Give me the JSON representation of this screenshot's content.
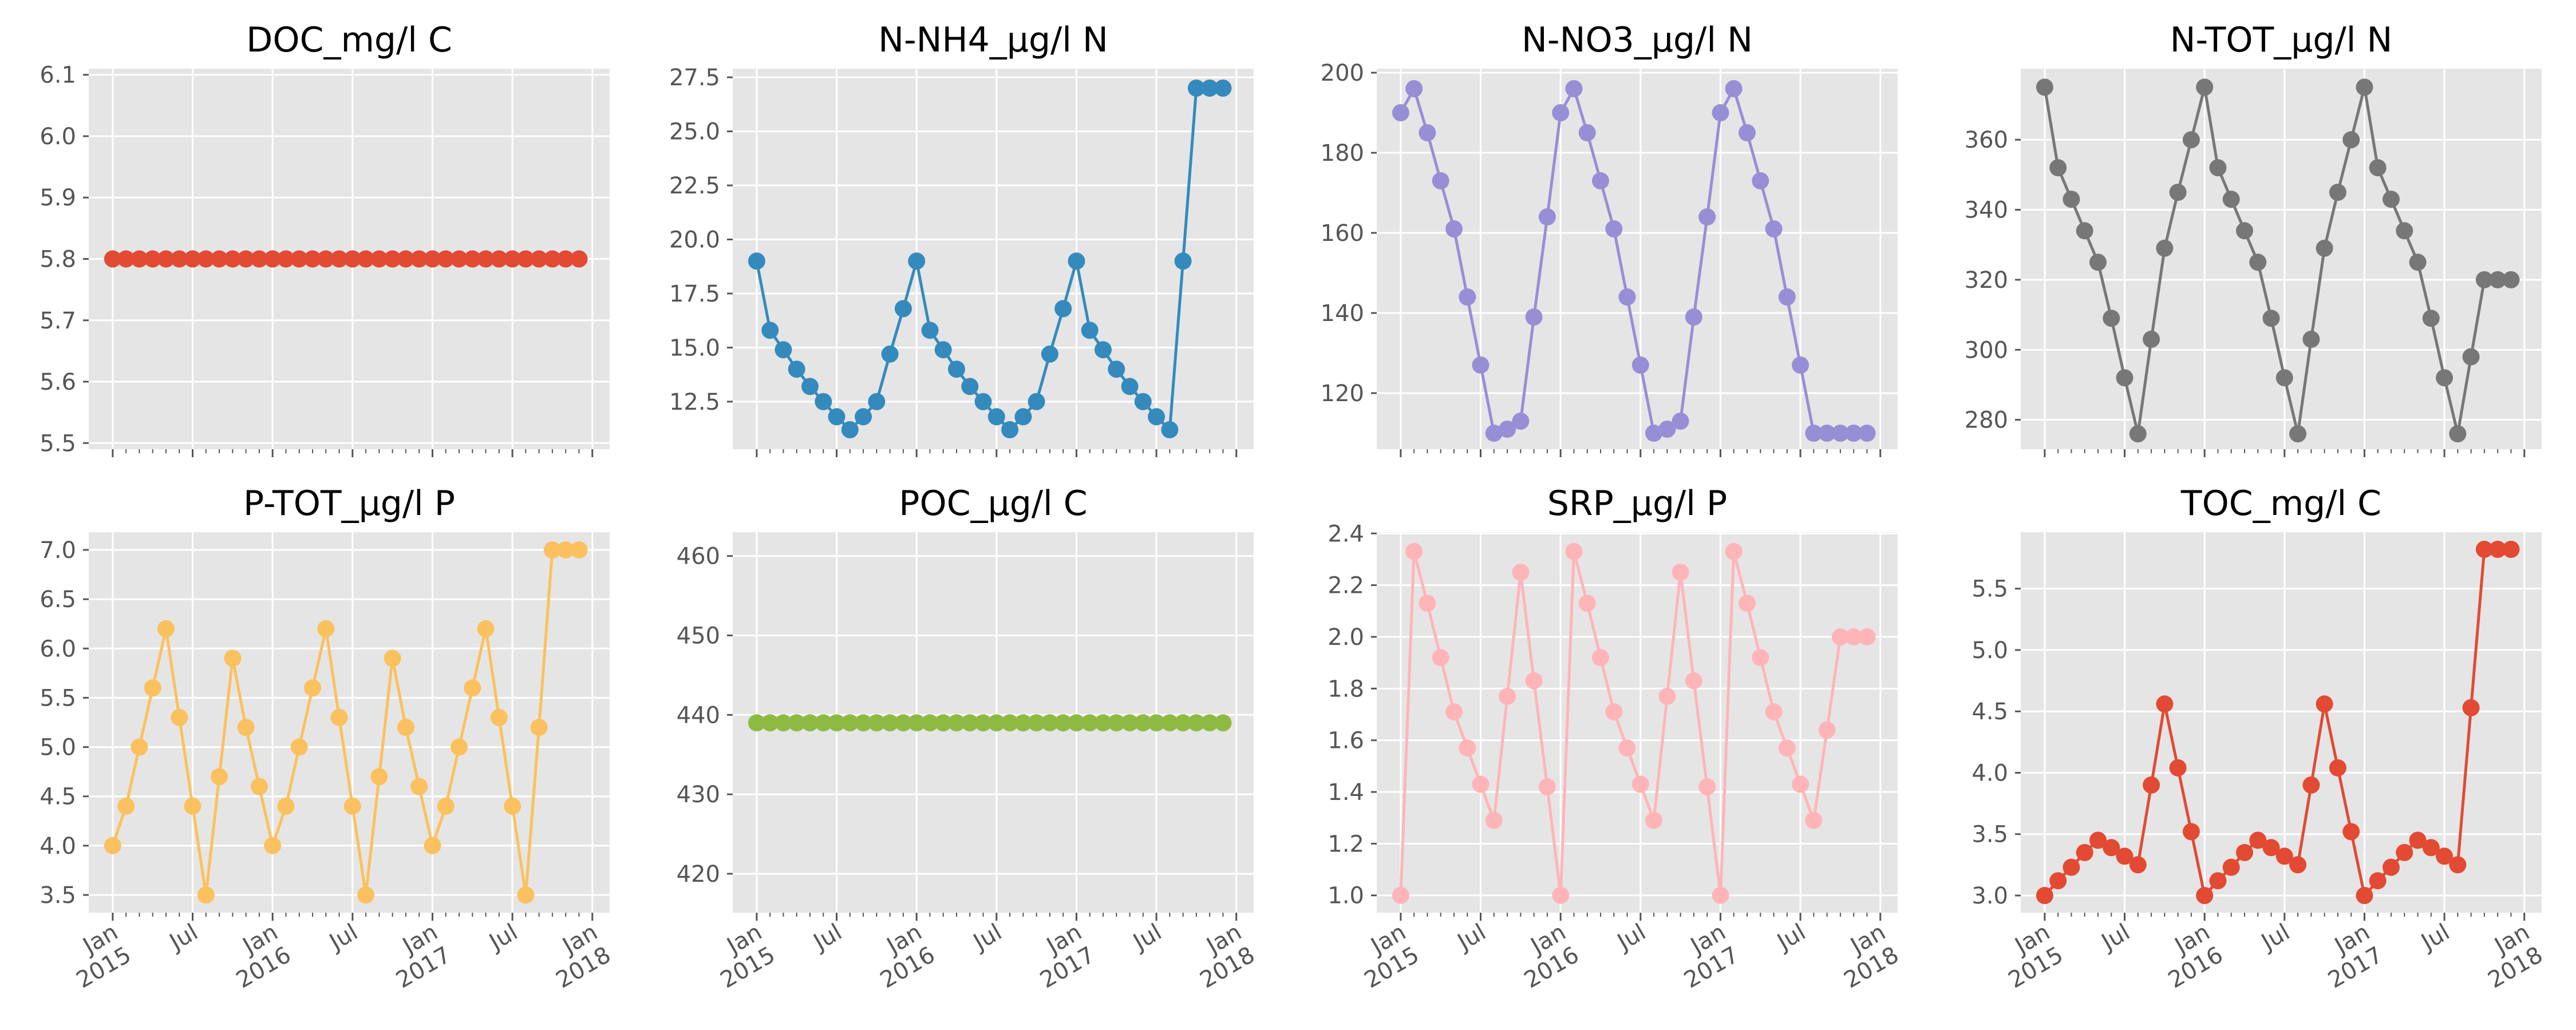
{
  "figure": {
    "background": "#ffffff",
    "axes_facecolor": "#e5e5e5",
    "grid_color": "#ffffff",
    "tick_color": "#555555",
    "x_ticks": [
      {
        "date": "2015-01",
        "month": "Jan",
        "year": "2015"
      },
      {
        "date": "2015-07",
        "month": "Jul",
        "year": ""
      },
      {
        "date": "2016-01",
        "month": "Jan",
        "year": "2016"
      },
      {
        "date": "2016-07",
        "month": "Jul",
        "year": ""
      },
      {
        "date": "2017-01",
        "month": "Jan",
        "year": "2017"
      },
      {
        "date": "2017-07",
        "month": "Jul",
        "year": ""
      },
      {
        "date": "2018-01",
        "month": "Jan",
        "year": "2018"
      }
    ]
  },
  "chart_data": [
    {
      "type": "line",
      "title": "DOC_mg/l C",
      "color": "#e24a33",
      "x_start": "2015-01",
      "x_step_months": 1,
      "ylim": [
        5.49,
        6.11
      ],
      "yticks": [
        5.5,
        5.6,
        5.7,
        5.8,
        5.9,
        6.0,
        6.1
      ],
      "ytick_labels": [
        "5.5",
        "5.6",
        "5.7",
        "5.8",
        "5.9",
        "6.0",
        "6.1"
      ],
      "show_xticklabels": false,
      "values": [
        5.8,
        5.8,
        5.8,
        5.8,
        5.8,
        5.8,
        5.8,
        5.8,
        5.8,
        5.8,
        5.8,
        5.8,
        5.8,
        5.8,
        5.8,
        5.8,
        5.8,
        5.8,
        5.8,
        5.8,
        5.8,
        5.8,
        5.8,
        5.8,
        5.8,
        5.8,
        5.8,
        5.8,
        5.8,
        5.8,
        5.8,
        5.8,
        5.8,
        5.8,
        5.8,
        5.8
      ]
    },
    {
      "type": "line",
      "title": "N-NH4_µg/l N",
      "color": "#348abd",
      "x_start": "2015-01",
      "x_step_months": 1,
      "ylim": [
        10.3,
        27.9
      ],
      "yticks": [
        12.5,
        15.0,
        17.5,
        20.0,
        22.5,
        25.0,
        27.5
      ],
      "ytick_labels": [
        "12.5",
        "15.0",
        "17.5",
        "20.0",
        "22.5",
        "25.0",
        "27.5"
      ],
      "show_xticklabels": false,
      "values": [
        19.0,
        15.8,
        14.9,
        14.0,
        13.2,
        12.5,
        11.8,
        11.2,
        11.8,
        12.5,
        14.7,
        16.8,
        19.0,
        15.8,
        14.9,
        14.0,
        13.2,
        12.5,
        11.8,
        11.2,
        11.8,
        12.5,
        14.7,
        16.8,
        19.0,
        15.8,
        14.9,
        14.0,
        13.2,
        12.5,
        11.8,
        11.2,
        19.0,
        27.0,
        27.0,
        27.0
      ]
    },
    {
      "type": "line",
      "title": "N-NO3_µg/l N",
      "color": "#988ed5",
      "x_start": "2015-01",
      "x_step_months": 1,
      "ylim": [
        106,
        201
      ],
      "yticks": [
        120,
        140,
        160,
        180,
        200
      ],
      "ytick_labels": [
        "120",
        "140",
        "160",
        "180",
        "200"
      ],
      "show_xticklabels": false,
      "values": [
        190,
        196,
        185,
        173,
        161,
        144,
        127,
        110,
        111,
        113,
        139,
        164,
        190,
        196,
        185,
        173,
        161,
        144,
        127,
        110,
        111,
        113,
        139,
        164,
        190,
        196,
        185,
        173,
        161,
        144,
        127,
        110,
        110,
        110,
        110,
        110
      ]
    },
    {
      "type": "line",
      "title": "N-TOT_µg/l N",
      "color": "#777777",
      "x_start": "2015-01",
      "x_step_months": 1,
      "ylim": [
        271.6,
        380.3
      ],
      "yticks": [
        280,
        300,
        320,
        340,
        360
      ],
      "ytick_labels": [
        "280",
        "300",
        "320",
        "340",
        "360"
      ],
      "show_xticklabels": false,
      "values": [
        375,
        352,
        343,
        334,
        325,
        309,
        292,
        276,
        303,
        329,
        345,
        360,
        375,
        352,
        343,
        334,
        325,
        309,
        292,
        276,
        303,
        329,
        345,
        360,
        375,
        352,
        343,
        334,
        325,
        309,
        292,
        276,
        298,
        320,
        320,
        320
      ]
    },
    {
      "type": "line",
      "title": "P-TOT_µg/l P",
      "color": "#fbc15e",
      "x_start": "2015-01",
      "x_step_months": 1,
      "ylim": [
        3.32,
        7.18
      ],
      "yticks": [
        3.5,
        4.0,
        4.5,
        5.0,
        5.5,
        6.0,
        6.5,
        7.0
      ],
      "ytick_labels": [
        "3.5",
        "4.0",
        "4.5",
        "5.0",
        "5.5",
        "6.0",
        "6.5",
        "7.0"
      ],
      "show_xticklabels": true,
      "values": [
        4.0,
        4.4,
        5.0,
        5.6,
        6.2,
        5.3,
        4.4,
        3.5,
        4.7,
        5.9,
        5.2,
        4.6,
        4.0,
        4.4,
        5.0,
        5.6,
        6.2,
        5.3,
        4.4,
        3.5,
        4.7,
        5.9,
        5.2,
        4.6,
        4.0,
        4.4,
        5.0,
        5.6,
        6.2,
        5.3,
        4.4,
        3.5,
        5.2,
        7.0,
        7.0,
        7.0
      ]
    },
    {
      "type": "line",
      "title": "POC_µg/l C",
      "color": "#8eba42",
      "x_start": "2015-01",
      "x_step_months": 1,
      "ylim": [
        415.1,
        463.0
      ],
      "yticks": [
        420,
        430,
        440,
        450,
        460
      ],
      "ytick_labels": [
        "420",
        "430",
        "440",
        "450",
        "460"
      ],
      "show_xticklabels": true,
      "values": [
        439,
        439,
        439,
        439,
        439,
        439,
        439,
        439,
        439,
        439,
        439,
        439,
        439,
        439,
        439,
        439,
        439,
        439,
        439,
        439,
        439,
        439,
        439,
        439,
        439,
        439,
        439,
        439,
        439,
        439,
        439,
        439,
        439,
        439,
        439,
        439
      ]
    },
    {
      "type": "line",
      "title": "SRP_µg/l P",
      "color": "#ffb5b8",
      "x_start": "2015-01",
      "x_step_months": 1,
      "ylim": [
        0.933,
        2.405
      ],
      "yticks": [
        1.0,
        1.2,
        1.4,
        1.6,
        1.8,
        2.0,
        2.2,
        2.4
      ],
      "ytick_labels": [
        "1.0",
        "1.2",
        "1.4",
        "1.6",
        "1.8",
        "2.0",
        "2.2",
        "2.4"
      ],
      "show_xticklabels": true,
      "values": [
        1.0,
        2.33,
        2.13,
        1.92,
        1.71,
        1.57,
        1.43,
        1.29,
        1.77,
        2.25,
        1.83,
        1.42,
        1.0,
        2.33,
        2.13,
        1.92,
        1.71,
        1.57,
        1.43,
        1.29,
        1.77,
        2.25,
        1.83,
        1.42,
        1.0,
        2.33,
        2.13,
        1.92,
        1.71,
        1.57,
        1.43,
        1.29,
        1.64,
        2.0,
        2.0,
        2.0
      ]
    },
    {
      "type": "line",
      "title": "TOC_mg/l C",
      "color": "#e24a33",
      "x_start": "2015-01",
      "x_step_months": 1,
      "ylim": [
        2.86,
        5.96
      ],
      "yticks": [
        3.0,
        3.5,
        4.0,
        4.5,
        5.0,
        5.5
      ],
      "ytick_labels": [
        "3.0",
        "3.5",
        "4.0",
        "4.5",
        "5.0",
        "5.5"
      ],
      "show_xticklabels": true,
      "values": [
        3.0,
        3.12,
        3.23,
        3.35,
        3.45,
        3.39,
        3.32,
        3.25,
        3.9,
        4.56,
        4.04,
        3.52,
        3.0,
        3.12,
        3.23,
        3.35,
        3.45,
        3.39,
        3.32,
        3.25,
        3.9,
        4.56,
        4.04,
        3.52,
        3.0,
        3.12,
        3.23,
        3.35,
        3.45,
        3.39,
        3.32,
        3.25,
        4.53,
        5.82,
        5.82,
        5.82
      ]
    }
  ]
}
